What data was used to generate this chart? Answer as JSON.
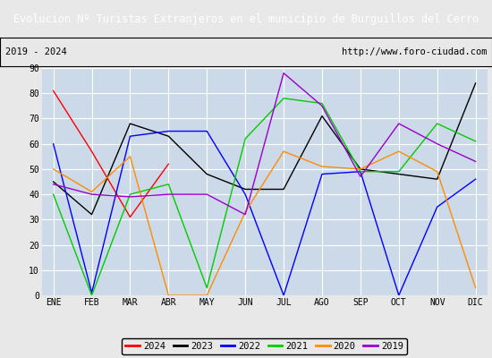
{
  "title": "Evolucion Nº Turistas Extranjeros en el municipio de Burguillos del Cerro",
  "subtitle_left": "2019 - 2024",
  "subtitle_right": "http://www.foro-ciudad.com",
  "title_bg": "#4472c4",
  "title_fg": "white",
  "months": [
    "ENE",
    "FEB",
    "MAR",
    "ABR",
    "MAY",
    "JUN",
    "JUL",
    "AGO",
    "SEP",
    "OCT",
    "NOV",
    "DIC"
  ],
  "ylim": [
    0,
    90
  ],
  "yticks": [
    0,
    10,
    20,
    30,
    40,
    50,
    60,
    70,
    80,
    90
  ],
  "series": {
    "2024": {
      "color": "#ff0000",
      "values": [
        81,
        57,
        31,
        52,
        null,
        null,
        null,
        null,
        null,
        null,
        null,
        null
      ]
    },
    "2023": {
      "color": "#000000",
      "values": [
        45,
        32,
        68,
        63,
        48,
        42,
        42,
        71,
        50,
        48,
        46,
        84
      ]
    },
    "2022": {
      "color": "#0000ff",
      "values": [
        60,
        1,
        63,
        65,
        65,
        40,
        0,
        48,
        49,
        0,
        35,
        46
      ]
    },
    "2021": {
      "color": "#00cc00",
      "values": [
        40,
        0,
        40,
        44,
        3,
        62,
        78,
        76,
        49,
        49,
        68,
        61
      ]
    },
    "2020": {
      "color": "#ff8c00",
      "values": [
        50,
        41,
        55,
        0,
        0,
        33,
        57,
        51,
        50,
        57,
        49,
        3
      ]
    },
    "2019": {
      "color": "#9900cc",
      "values": [
        44,
        40,
        39,
        40,
        40,
        32,
        88,
        75,
        47,
        68,
        60,
        53
      ]
    }
  },
  "legend_order": [
    "2024",
    "2023",
    "2022",
    "2021",
    "2020",
    "2019"
  ],
  "bg_color": "#e8e8e8",
  "plot_bg": "#ccd9e8",
  "grid_color": "white",
  "title_fontsize": 8.5,
  "subtitle_fontsize": 7.5,
  "tick_fontsize": 7,
  "legend_fontsize": 7.5
}
